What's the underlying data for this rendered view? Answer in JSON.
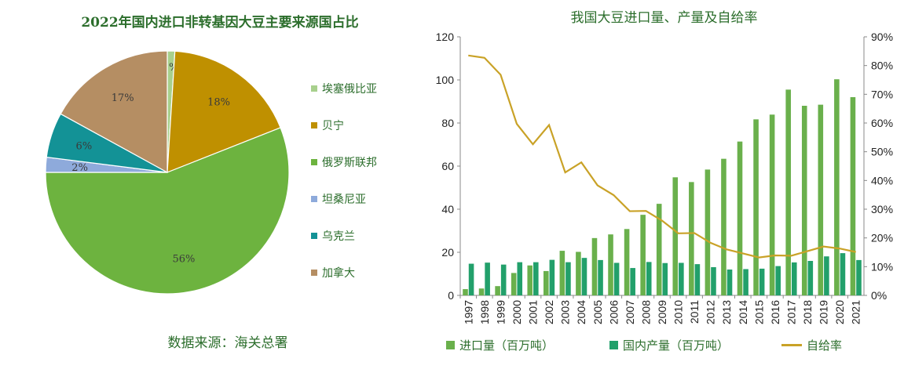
{
  "chart_data": [
    {
      "type": "pie",
      "title": "2022年国内进口非转基因大豆主要来源国占比",
      "source": "数据来源：海关总署",
      "slices": [
        {
          "label": "埃塞俄比亚",
          "value": 1,
          "text": "1%",
          "color": "#a8d08d"
        },
        {
          "label": "贝宁",
          "value": 18,
          "text": "18%",
          "color": "#bf9000"
        },
        {
          "label": "俄罗斯联邦",
          "value": 56,
          "text": "56%",
          "color": "#6db33f"
        },
        {
          "label": "坦桑尼亚",
          "value": 2,
          "text": "2%",
          "color": "#8eaadb"
        },
        {
          "label": "乌克兰",
          "value": 6,
          "text": "6%",
          "color": "#139296"
        },
        {
          "label": "加拿大",
          "value": 17,
          "text": "17%",
          "color": "#b58e63"
        }
      ]
    },
    {
      "type": "bar",
      "title": "我国大豆进口量、产量及自给率",
      "categories": [
        "1997",
        "1998",
        "1999",
        "2000",
        "2001",
        "2002",
        "2003",
        "2004",
        "2005",
        "2006",
        "2007",
        "2008",
        "2009",
        "2010",
        "2011",
        "2012",
        "2013",
        "2014",
        "2015",
        "2016",
        "2017",
        "2018",
        "2019",
        "2020",
        "2021"
      ],
      "ylim": [
        0,
        120
      ],
      "yticks": [
        "0",
        "20",
        "40",
        "60",
        "80",
        "100",
        "120"
      ],
      "y2lim": [
        0,
        90
      ],
      "y2ticks": [
        "0%",
        "10%",
        "20%",
        "30%",
        "40%",
        "50%",
        "60%",
        "70%",
        "80%",
        "90%"
      ],
      "series": [
        {
          "name": "进口量（百万吨）",
          "type": "bar",
          "color": "#6ab04c",
          "values": [
            2.9,
            3.2,
            4.3,
            10.4,
            13.9,
            11.3,
            20.7,
            20.2,
            26.6,
            28.3,
            30.8,
            37.4,
            42.5,
            54.8,
            52.6,
            58.4,
            63.4,
            71.4,
            81.7,
            83.9,
            95.5,
            88.0,
            88.5,
            100.3,
            92.0
          ]
        },
        {
          "name": "国内产量（百万吨）",
          "type": "bar",
          "color": "#22a06b",
          "values": [
            14.7,
            15.2,
            14.3,
            15.4,
            15.4,
            16.5,
            15.4,
            17.4,
            16.4,
            15.1,
            12.7,
            15.5,
            15.0,
            15.1,
            14.5,
            13.1,
            12.0,
            12.2,
            12.4,
            13.6,
            15.3,
            16.0,
            18.1,
            19.6,
            16.4
          ]
        },
        {
          "name": "自给率",
          "type": "line",
          "axis": "y2",
          "color": "#c9a227",
          "values": [
            83.5,
            82.7,
            76.8,
            59.7,
            52.6,
            59.3,
            42.8,
            46.3,
            38.3,
            34.9,
            29.3,
            29.4,
            26.0,
            21.6,
            21.7,
            18.3,
            16.0,
            14.6,
            13.2,
            13.9,
            13.8,
            15.4,
            17.0,
            16.3,
            15.1
          ]
        }
      ]
    }
  ]
}
